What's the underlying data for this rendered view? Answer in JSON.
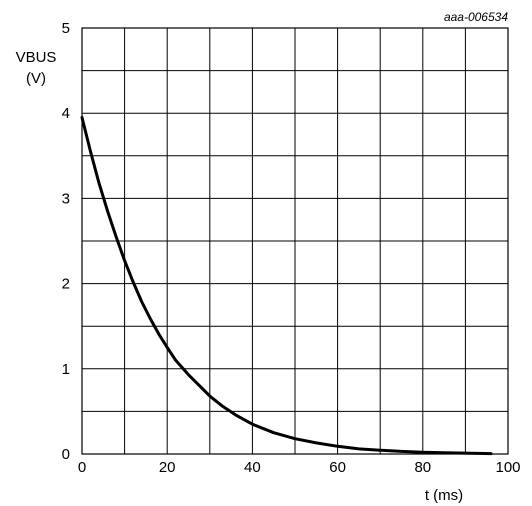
{
  "chart_data": {
    "type": "line",
    "reference_id": "aaa-006534",
    "ylabel_line1": "VBUS",
    "ylabel_line2": "(V)",
    "xlabel": "t (ms)",
    "xlim": [
      0,
      100
    ],
    "ylim": [
      0,
      5
    ],
    "x_ticks": [
      "0",
      "20",
      "40",
      "60",
      "80",
      "100"
    ],
    "y_ticks": [
      "0",
      "1",
      "2",
      "3",
      "4",
      "5"
    ],
    "grid": true,
    "x_minor_step": 10,
    "y_minor_step": 0.5,
    "line_color": "#000000",
    "series": [
      {
        "x": [
          0,
          2,
          4,
          6,
          8,
          10,
          12,
          14,
          16,
          18,
          20,
          22,
          25,
          28,
          30,
          33,
          36,
          40,
          45,
          50,
          55,
          60,
          65,
          70,
          75,
          80,
          85,
          90,
          96
        ],
        "values": [
          3.95,
          3.55,
          3.18,
          2.85,
          2.55,
          2.27,
          2.02,
          1.79,
          1.59,
          1.41,
          1.25,
          1.1,
          0.93,
          0.78,
          0.68,
          0.56,
          0.46,
          0.35,
          0.25,
          0.18,
          0.13,
          0.09,
          0.06,
          0.045,
          0.03,
          0.02,
          0.015,
          0.01,
          0.005
        ]
      }
    ]
  }
}
